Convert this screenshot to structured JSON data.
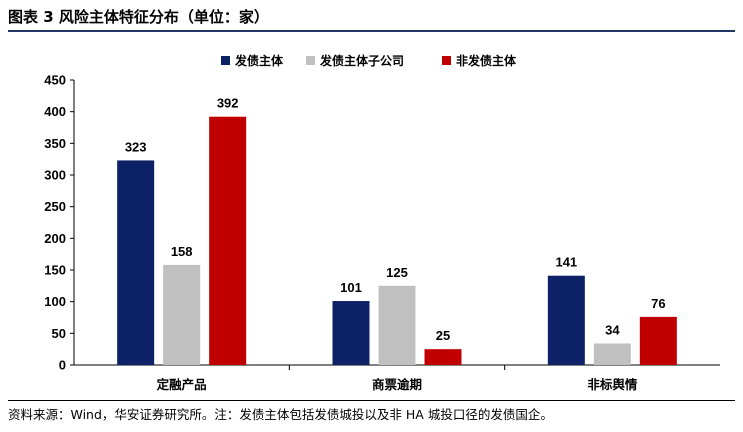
{
  "header": {
    "title": "图表 3  风险主体特征分布（单位：家）"
  },
  "footer": {
    "source": "资料来源：Wind，华安证券研究所。注：发债主体包括发债城投以及非 HA 城投口径的发债国企。"
  },
  "chart_data": {
    "type": "bar",
    "categories": [
      "定融产品",
      "商票逾期",
      "非标舆情"
    ],
    "series": [
      {
        "name": "发债主体",
        "values": [
          323,
          101,
          141
        ],
        "color": "#0d2166"
      },
      {
        "name": "发债主体子公司",
        "values": [
          158,
          125,
          34
        ],
        "color": "#c0c0c0"
      },
      {
        "name": "非发债主体",
        "values": [
          392,
          25,
          76
        ],
        "color": "#c00000"
      }
    ],
    "ylim": [
      0,
      450
    ],
    "yticks": [
      0,
      50,
      100,
      150,
      200,
      250,
      300,
      350,
      400,
      450
    ],
    "legend": "top",
    "grid": false
  }
}
